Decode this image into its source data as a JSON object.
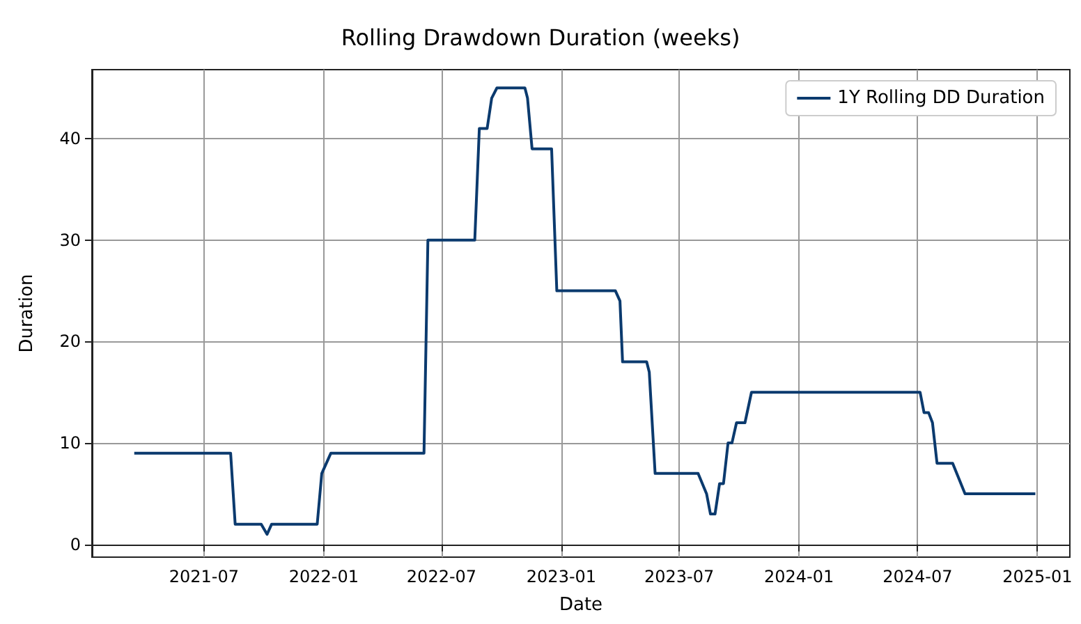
{
  "chart_data": {
    "type": "line",
    "title": "Rolling Drawdown Duration (weeks)",
    "xlabel": "Date",
    "ylabel": "Duration",
    "x": [
      "2021-03-16",
      "2021-08-11",
      "2021-08-18",
      "2021-09-27",
      "2021-10-06",
      "2021-10-13",
      "2021-12-22",
      "2021-12-29",
      "2022-01-12",
      "2022-06-04",
      "2022-06-10",
      "2022-08-21",
      "2022-08-28",
      "2022-09-09",
      "2022-09-16",
      "2022-09-24",
      "2022-11-06",
      "2022-11-10",
      "2022-11-17",
      "2022-12-17",
      "2022-12-25",
      "2023-03-25",
      "2023-04-01",
      "2023-04-05",
      "2023-05-12",
      "2023-05-16",
      "2023-05-25",
      "2023-07-30",
      "2023-08-12",
      "2023-08-18",
      "2023-08-25",
      "2023-09-01",
      "2023-09-07",
      "2023-09-14",
      "2023-09-20",
      "2023-09-27",
      "2023-10-10",
      "2023-10-20",
      "2024-07-05",
      "2024-07-11",
      "2024-07-18",
      "2024-07-24",
      "2024-07-31",
      "2024-08-24",
      "2024-09-12",
      "2024-12-29"
    ],
    "series": [
      {
        "name": "1Y Rolling DD Duration",
        "color": "#0b3a6e",
        "values": [
          9,
          9,
          2,
          2,
          1,
          2,
          2,
          7,
          9,
          9,
          30,
          30,
          41,
          41,
          44,
          45,
          45,
          44,
          39,
          39,
          25,
          25,
          24,
          18,
          18,
          17,
          7,
          7,
          5,
          3,
          3,
          6,
          6,
          10,
          10,
          12,
          12,
          15,
          15,
          13,
          13,
          12,
          8,
          8,
          5,
          5
        ]
      }
    ],
    "xlim": [
      "2021-01-10",
      "2025-02-20"
    ],
    "xticks": [
      "2021-07",
      "2022-01",
      "2022-07",
      "2023-01",
      "2023-07",
      "2024-01",
      "2024-07",
      "2025-01"
    ],
    "ylim": [
      -1.25,
      46.8
    ],
    "yticks": [
      0,
      10,
      20,
      30,
      40
    ],
    "grid": true,
    "legend": "top right",
    "line_style": "solid",
    "marker": "none"
  }
}
